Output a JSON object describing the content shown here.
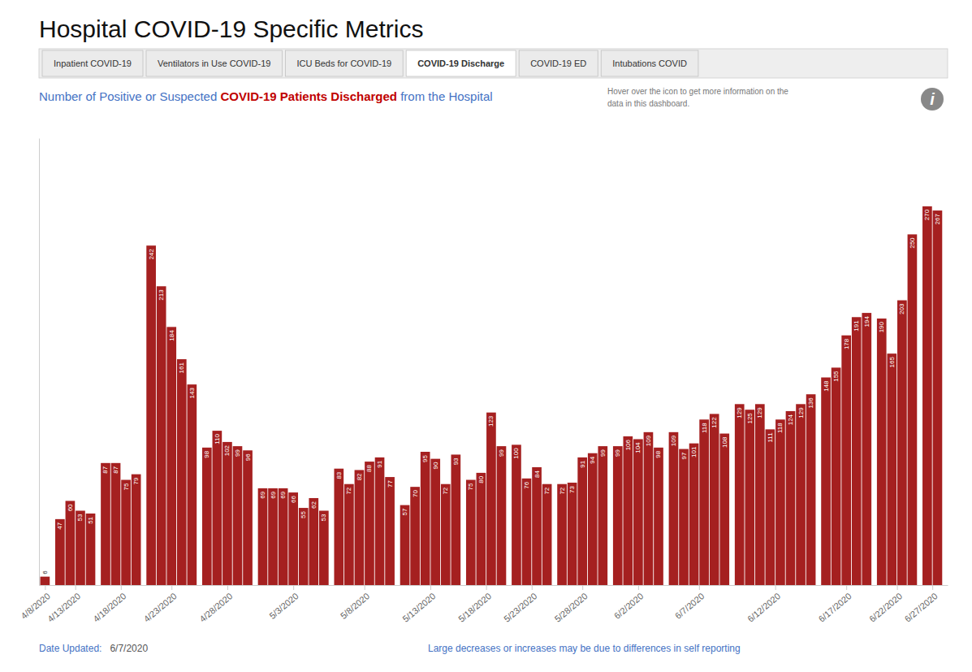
{
  "chart_data": {
    "type": "bar",
    "title": "Hospital COVID-19 Specific Metrics",
    "subtitle": [
      "Number of Positive or Suspected ",
      "COVID-19 Patients Discharged",
      " from the Hospital"
    ],
    "tabs": [
      "Inpatient COVID-19",
      "Ventilators in Use COVID-19",
      "ICU Beds for COVID-19",
      "COVID-19 Discharge",
      "COVID-19 ED",
      "Intubations COVID"
    ],
    "active_tab": "COVID-19 Discharge",
    "info_text": [
      "Hover over the icon to get more information on the",
      "data in this dashboard."
    ],
    "info_icon": "i",
    "date_updated_label": "Date Updated:",
    "date_updated_value": "6/7/2020",
    "footnote": "Large decreases or increases may be due to differences in self reporting",
    "categories": [
      "4/8/2020",
      "4/13/2020",
      "4/18/2020",
      "4/23/2020",
      "4/28/2020",
      "5/3/2020",
      "5/8/2020",
      "5/13/2020",
      "5/18/2020",
      "5/23/2020",
      "5/28/2020",
      "6/2/2020",
      "6/7/2020",
      "6/12/2020",
      "6/17/2020",
      "6/22/2020",
      "6/27/2020"
    ],
    "values": [
      [
        6
      ],
      [
        47,
        60,
        53,
        51
      ],
      [
        87,
        87,
        75,
        79
      ],
      [
        242,
        213,
        184,
        161,
        143
      ],
      [
        98,
        110,
        102,
        99,
        96
      ],
      [
        69,
        69,
        69,
        66,
        55,
        62,
        53
      ],
      [
        83,
        72,
        82,
        88,
        91,
        77
      ],
      [
        57,
        70,
        95,
        90,
        72,
        93
      ],
      [
        75,
        80,
        123,
        99
      ],
      [
        100,
        76,
        84,
        72
      ],
      [
        72,
        73,
        91,
        94,
        99
      ],
      [
        99,
        106,
        104,
        109,
        98
      ],
      [
        109,
        97,
        101,
        118,
        122,
        108
      ],
      [
        129,
        125,
        129,
        111,
        118,
        124,
        129,
        136
      ],
      [
        148,
        155,
        178,
        191,
        194
      ],
      [
        190,
        165,
        203,
        250
      ],
      [
        270,
        267
      ]
    ],
    "color": "#A52020",
    "ylim": [
      0,
      318.6
    ],
    "grid": false,
    "data_labels": true,
    "tick_labels": "x"
  }
}
